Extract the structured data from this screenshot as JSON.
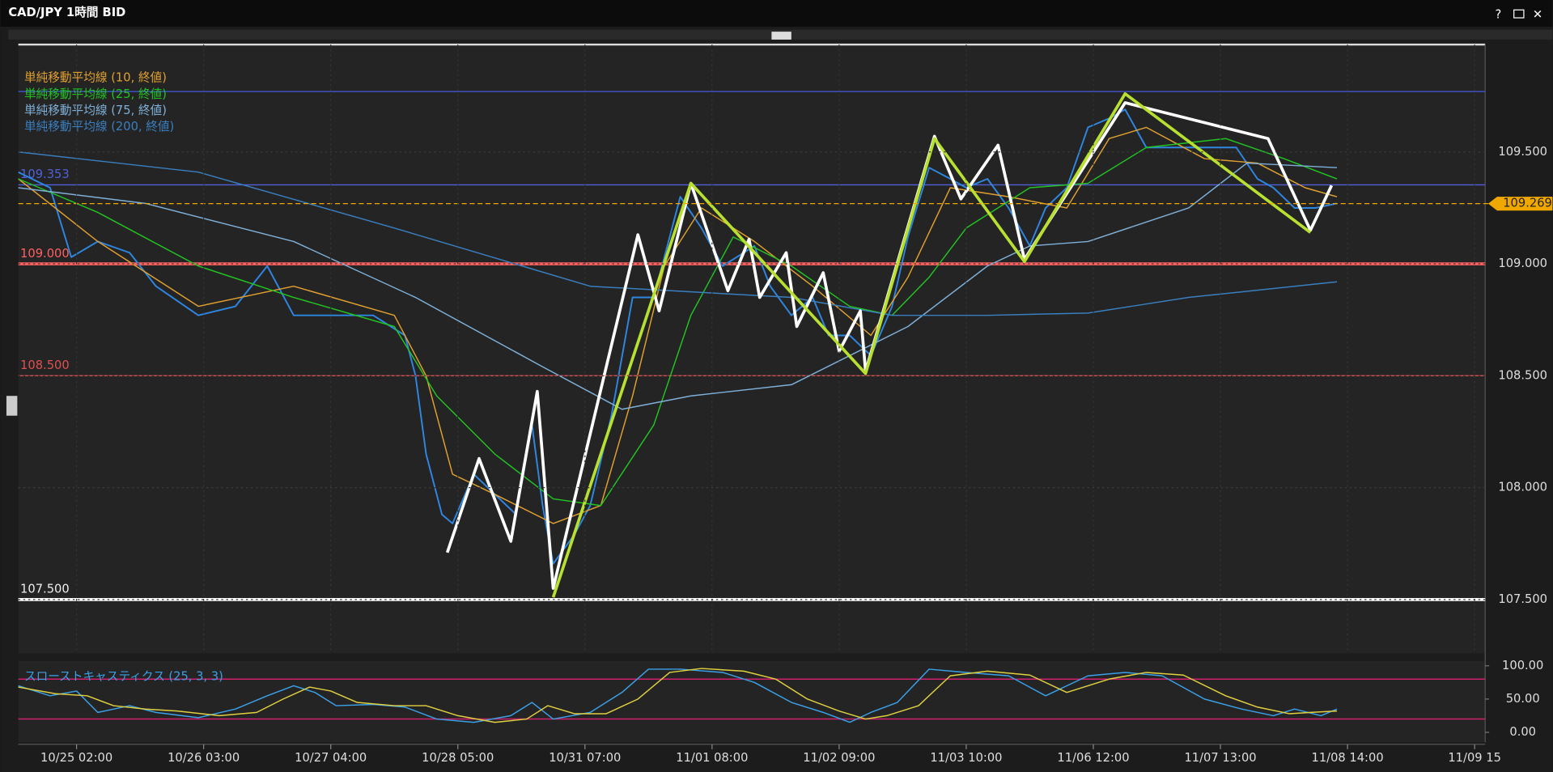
{
  "window": {
    "title": "CAD/JPY 1時間 BID"
  },
  "chart_data": [
    {
      "type": "line",
      "x": [
        -11,
        -5,
        -1,
        4,
        10,
        15,
        23,
        30,
        36,
        41,
        49,
        56,
        62,
        64,
        66,
        69,
        71,
        75,
        79,
        83,
        86,
        88,
        90,
        94,
        97,
        101,
        105,
        109,
        114,
        118,
        122,
        128,
        131,
        135,
        139,
        142,
        146,
        150,
        154,
        157,
        161,
        165,
        168,
        172,
        176,
        180,
        183,
        187,
        191,
        195,
        198,
        202,
        208,
        213,
        219,
        223,
        226,
        230,
        234,
        238
      ],
      "values": [
        109.41,
        109.34,
        109.03,
        109.1,
        109.05,
        108.9,
        108.77,
        108.81,
        108.99,
        108.77,
        108.77,
        108.77,
        108.68,
        108.5,
        108.15,
        107.88,
        107.84,
        108.06,
        107.97,
        107.88,
        108.28,
        107.92,
        107.66,
        107.79,
        107.92,
        108.32,
        108.85,
        108.85,
        109.3,
        109.16,
        108.99,
        109.08,
        108.9,
        108.77,
        108.85,
        108.68,
        108.68,
        108.59,
        108.81,
        109.12,
        109.43,
        109.38,
        109.34,
        109.38,
        109.25,
        109.08,
        109.25,
        109.34,
        109.61,
        109.65,
        109.69,
        109.52,
        109.52,
        109.52,
        109.52,
        109.38,
        109.34,
        109.25,
        109.25,
        109.27
      ],
      "color": "#2f86e0",
      "series": [
        {
          "name": "単純移動平均線 (10, 終値)",
          "color": "#e0a030",
          "x": [
            -11,
            4,
            23,
            41,
            60,
            66,
            71,
            79,
            90,
            99,
            105,
            111,
            118,
            128,
            139,
            150,
            157,
            165,
            176,
            187,
            195,
            202,
            213,
            223,
            232,
            238
          ],
          "values": [
            109.38,
            109.1,
            108.81,
            108.9,
            108.77,
            108.5,
            108.06,
            107.97,
            107.84,
            107.92,
            108.41,
            108.99,
            109.25,
            109.1,
            108.9,
            108.68,
            108.94,
            109.34,
            109.3,
            109.25,
            109.56,
            109.61,
            109.47,
            109.45,
            109.34,
            109.3
          ]
        },
        {
          "name": "単純移動平均線 (25, 終値)",
          "color": "#22c322",
          "x": [
            -11,
            4,
            23,
            41,
            60,
            68,
            79,
            90,
            99,
            109,
            116,
            124,
            135,
            146,
            154,
            161,
            168,
            180,
            191,
            202,
            217,
            228,
            238
          ],
          "values": [
            109.38,
            109.23,
            108.99,
            108.85,
            108.72,
            108.41,
            108.15,
            107.95,
            107.92,
            108.28,
            108.77,
            109.12,
            108.99,
            108.81,
            108.77,
            108.94,
            109.16,
            109.34,
            109.36,
            109.52,
            109.56,
            109.47,
            109.38
          ]
        },
        {
          "name": "単純移動平均線 (75, 終値)",
          "color": "#7fb0d8",
          "x": [
            -11,
            13,
            41,
            64,
            88,
            103,
            116,
            135,
            146,
            157,
            172,
            180,
            191,
            210,
            221,
            238
          ],
          "values": [
            109.34,
            109.27,
            109.1,
            108.85,
            108.54,
            108.35,
            108.41,
            108.46,
            108.59,
            108.72,
            108.99,
            109.08,
            109.1,
            109.25,
            109.45,
            109.43
          ]
        },
        {
          "name": "単純移動平均線 (200, 終値)",
          "color": "#3a7fc0",
          "x": [
            -11,
            23,
            60,
            97,
            135,
            154,
            172,
            191,
            210,
            238
          ],
          "values": [
            109.5,
            109.41,
            109.16,
            108.9,
            108.85,
            108.77,
            108.77,
            108.78,
            108.85,
            108.92
          ]
        }
      ],
      "zigzags": [
        {
          "color": "#ffffff",
          "x": [
            70,
            76,
            82,
            87,
            90,
            106,
            110,
            116,
            123,
            127,
            129,
            134,
            136,
            141,
            144,
            148,
            149,
            162,
            167,
            174,
            179,
            198,
            225,
            233,
            237
          ],
          "values": [
            107.71,
            108.13,
            107.76,
            108.43,
            107.55,
            109.13,
            108.79,
            109.36,
            108.88,
            109.11,
            108.85,
            109.05,
            108.72,
            108.96,
            108.61,
            108.79,
            108.52,
            109.57,
            109.29,
            109.53,
            109.02,
            109.72,
            109.56,
            109.15,
            109.35
          ]
        },
        {
          "color": "#b8e030",
          "x": [
            90,
            116,
            149,
            162,
            179,
            198,
            233
          ],
          "values": [
            107.51,
            109.36,
            108.51,
            109.56,
            109.01,
            109.76,
            109.14
          ]
        }
      ],
      "levels": [
        {
          "value": 109.77,
          "color": "#4050c0"
        },
        {
          "value": 109.353,
          "color": "#5060d8"
        },
        {
          "value": 109,
          "label": "109.000",
          "color": "#ff6060"
        },
        {
          "value": 108.5,
          "label": "108.500",
          "color": "#e05050"
        },
        {
          "value": 107.5,
          "label": "107.500",
          "color": "#ffffff"
        }
      ],
      "last_price": {
        "value": 109.269,
        "color": "#f0a800"
      },
      "xlim": [
        -11,
        266
      ],
      "xticks": [
        {
          "value": 0,
          "label": "10/25 02:00"
        },
        {
          "value": 24,
          "label": "10/26 03:00"
        },
        {
          "value": 48,
          "label": "10/27 04:00"
        },
        {
          "value": 72,
          "label": "10/28 05:00"
        },
        {
          "value": 96,
          "label": "10/31 07:00"
        },
        {
          "value": 120,
          "label": "11/01 08:00"
        },
        {
          "value": 144,
          "label": "11/02 09:00"
        },
        {
          "value": 168,
          "label": "11/03 10:00"
        },
        {
          "value": 192,
          "label": "11/06 12:00"
        },
        {
          "value": 216,
          "label": "11/07 13:00"
        },
        {
          "value": 240,
          "label": "11/08 14:00"
        },
        {
          "value": 264,
          "label": "11/09 15"
        }
      ],
      "ylim": [
        107.26,
        109.98
      ],
      "yticks": [
        {
          "value": 107.5,
          "label": "107.500"
        },
        {
          "value": 108,
          "label": "108.000"
        },
        {
          "value": 108.5,
          "label": "108.500"
        },
        {
          "value": 109,
          "label": "109.000"
        },
        {
          "value": 109.5,
          "label": "109.500"
        }
      ],
      "grid": true
    },
    {
      "type": "line",
      "title": "スローストキャスティクス (25, 3, 3)",
      "series": [
        {
          "color": "#3aa0e8",
          "x": [
            -11,
            -5,
            0,
            4,
            10,
            15,
            23,
            30,
            36,
            41,
            45,
            49,
            56,
            62,
            68,
            75,
            82,
            86,
            90,
            97,
            103,
            108,
            114,
            122,
            128,
            135,
            141,
            146,
            150,
            155,
            161,
            168,
            176,
            183,
            191,
            198,
            205,
            213,
            220,
            226,
            230,
            235,
            238
          ],
          "values": [
            70,
            55,
            62,
            30,
            40,
            30,
            22,
            35,
            55,
            70,
            60,
            40,
            42,
            38,
            20,
            15,
            25,
            45,
            20,
            30,
            60,
            95,
            95,
            90,
            75,
            45,
            30,
            15,
            30,
            45,
            95,
            90,
            85,
            55,
            85,
            90,
            85,
            50,
            35,
            25,
            35,
            25,
            35
          ]
        },
        {
          "color": "#e0d040",
          "x": [
            -11,
            -4,
            2,
            7,
            13,
            19,
            27,
            34,
            39,
            44,
            48,
            53,
            60,
            66,
            72,
            79,
            85,
            89,
            94,
            100,
            106,
            112,
            118,
            126,
            132,
            138,
            144,
            149,
            153,
            159,
            165,
            172,
            180,
            187,
            195,
            202,
            209,
            217,
            223,
            229,
            233,
            238
          ],
          "values": [
            68,
            58,
            55,
            40,
            35,
            32,
            25,
            30,
            50,
            68,
            62,
            45,
            40,
            40,
            25,
            15,
            20,
            40,
            28,
            28,
            50,
            90,
            96,
            92,
            80,
            50,
            32,
            20,
            25,
            40,
            85,
            92,
            86,
            60,
            80,
            90,
            86,
            55,
            38,
            28,
            30,
            32
          ]
        }
      ],
      "levels": [
        {
          "value": 80,
          "color": "#d0206e"
        },
        {
          "value": 20,
          "color": "#d0206e"
        }
      ],
      "ylim": [
        -15,
        107
      ],
      "yticks": [
        {
          "value": 0,
          "label": "0.00"
        },
        {
          "value": 50,
          "label": "50.00"
        },
        {
          "value": 100,
          "label": "100.00"
        }
      ]
    }
  ]
}
